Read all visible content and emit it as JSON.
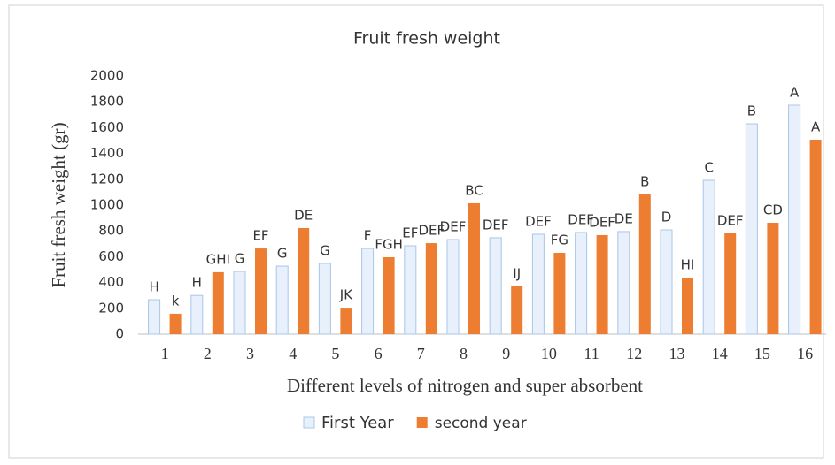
{
  "chart_data": {
    "type": "bar",
    "title": "Fruit fresh weight",
    "x_label": "Different levels of nitrogen and super absorbent",
    "y_label": "Fruit  fresh weight (gr)",
    "categories": [
      "1",
      "2",
      "3",
      "4",
      "5",
      "6",
      "7",
      "8",
      "9",
      "10",
      "11",
      "12",
      "13",
      "14",
      "15",
      "16"
    ],
    "series": [
      {
        "name": "First Year",
        "color": "#e8f1fb",
        "values": [
          267,
          300,
          486,
          527,
          548,
          664,
          685,
          733,
          747,
          774,
          788,
          795,
          808,
          1192,
          1630,
          1774
        ],
        "letters": [
          "H",
          "H",
          "G",
          "G",
          "G",
          "F",
          "EF",
          "DEF",
          "DEF",
          "DEF",
          "DEF",
          "DE",
          "D",
          "C",
          "B",
          "A"
        ]
      },
      {
        "name": "second year",
        "color": "#ed7d31",
        "values": [
          158,
          480,
          664,
          822,
          205,
          596,
          705,
          1014,
          370,
          630,
          767,
          1082,
          438,
          781,
          863,
          1507
        ],
        "letters": [
          "k",
          "GHI",
          "EF",
          "DE",
          "JK",
          "FGH",
          "DEF",
          "BC",
          "IJ",
          "FG",
          "DEF",
          "B",
          "HI",
          "DEF",
          "CD",
          "A"
        ]
      }
    ],
    "ylim": [
      0,
      2000
    ],
    "yticks": [
      0,
      200,
      400,
      600,
      800,
      1000,
      1200,
      1400,
      1600,
      1800,
      2000
    ],
    "grid": false,
    "legend": "bottom"
  }
}
